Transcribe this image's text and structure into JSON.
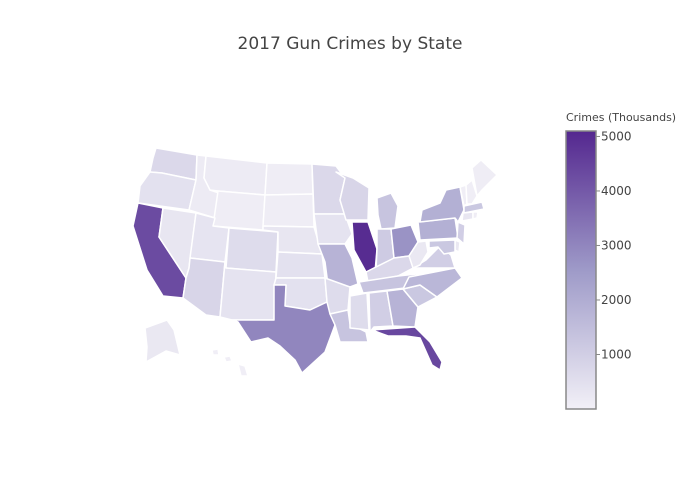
{
  "chart_data": {
    "type": "choropleth",
    "title": "2017 Gun Crimes by State",
    "colorbar": {
      "title": "Crimes (Thousands)",
      "range": [
        0,
        5100
      ],
      "ticks": [
        1000,
        2000,
        3000,
        4000,
        5000
      ],
      "color_low": "#f2f0f7",
      "color_high": "#54278f"
    },
    "states": [
      {
        "code": "WA",
        "value": 700
      },
      {
        "code": "OR",
        "value": 450
      },
      {
        "code": "CA",
        "value": 4300
      },
      {
        "code": "NV",
        "value": 300
      },
      {
        "code": "ID",
        "value": 150
      },
      {
        "code": "MT",
        "value": 150
      },
      {
        "code": "WY",
        "value": 100
      },
      {
        "code": "UT",
        "value": 350
      },
      {
        "code": "AZ",
        "value": 800
      },
      {
        "code": "CO",
        "value": 600
      },
      {
        "code": "NM",
        "value": 400
      },
      {
        "code": "ND",
        "value": 100
      },
      {
        "code": "SD",
        "value": 100
      },
      {
        "code": "NE",
        "value": 300
      },
      {
        "code": "KS",
        "value": 450
      },
      {
        "code": "OK",
        "value": 450
      },
      {
        "code": "TX",
        "value": 3000
      },
      {
        "code": "MN",
        "value": 700
      },
      {
        "code": "IA",
        "value": 400
      },
      {
        "code": "MO",
        "value": 1800
      },
      {
        "code": "AR",
        "value": 600
      },
      {
        "code": "LA",
        "value": 1300
      },
      {
        "code": "WI",
        "value": 800
      },
      {
        "code": "IL",
        "value": 5000
      },
      {
        "code": "MI",
        "value": 1300
      },
      {
        "code": "IN",
        "value": 1100
      },
      {
        "code": "OH",
        "value": 2700
      },
      {
        "code": "KY",
        "value": 700
      },
      {
        "code": "TN",
        "value": 1300
      },
      {
        "code": "MS",
        "value": 600
      },
      {
        "code": "AL",
        "value": 1000
      },
      {
        "code": "GA",
        "value": 1800
      },
      {
        "code": "FL",
        "value": 4400
      },
      {
        "code": "SC",
        "value": 1200
      },
      {
        "code": "NC",
        "value": 1700
      },
      {
        "code": "VA",
        "value": 1000
      },
      {
        "code": "WV",
        "value": 250
      },
      {
        "code": "PA",
        "value": 1900
      },
      {
        "code": "NY",
        "value": 1900
      },
      {
        "code": "ME",
        "value": 100
      },
      {
        "code": "VT",
        "value": 50
      },
      {
        "code": "NH",
        "value": 50
      },
      {
        "code": "MA",
        "value": 1200
      },
      {
        "code": "CT",
        "value": 300
      },
      {
        "code": "RI",
        "value": 100
      },
      {
        "code": "NJ",
        "value": 1000
      },
      {
        "code": "DE",
        "value": 250
      },
      {
        "code": "MD",
        "value": 1200
      },
      {
        "code": "AK",
        "value": 250
      },
      {
        "code": "HI",
        "value": 50
      }
    ]
  }
}
